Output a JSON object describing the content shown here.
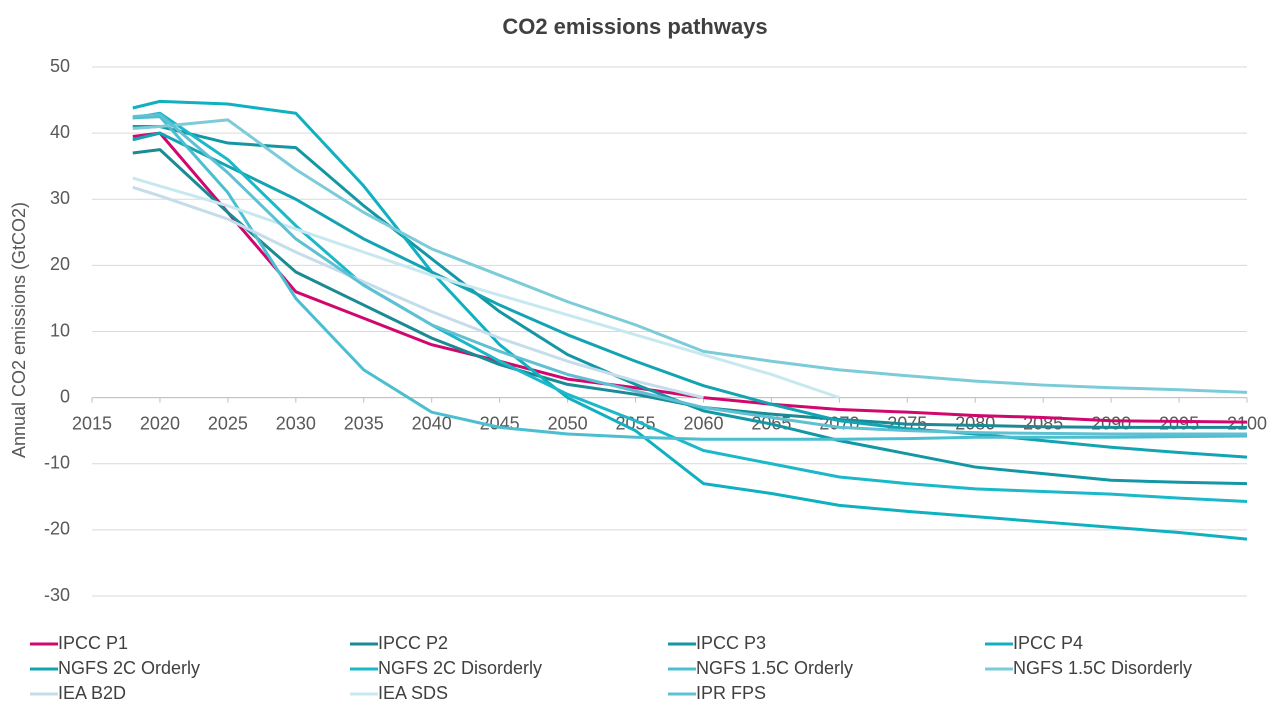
{
  "chart_data": {
    "type": "line",
    "title": "CO2 emissions pathways",
    "y_label": "Annual CO2 emissions (GtCO2)",
    "x": [
      2018,
      2020,
      2025,
      2030,
      2035,
      2040,
      2045,
      2050,
      2055,
      2060,
      2065,
      2070,
      2075,
      2080,
      2085,
      2090,
      2095,
      2100
    ],
    "xlim": [
      2015,
      2100
    ],
    "xticks": [
      2015,
      2020,
      2025,
      2030,
      2035,
      2040,
      2045,
      2050,
      2055,
      2060,
      2065,
      2070,
      2075,
      2080,
      2085,
      2090,
      2095,
      2100
    ],
    "ylim": [
      -30,
      50
    ],
    "yticks": [
      -30,
      -20,
      -10,
      0,
      10,
      20,
      30,
      40,
      50
    ],
    "grid": true,
    "legend": "bottom",
    "series": [
      {
        "name": "IPCC P1",
        "color": "#d0086e",
        "values": [
          39.5,
          40,
          28,
          16,
          12,
          8,
          5.5,
          2.8,
          1.5,
          0,
          -1,
          -1.8,
          -2.2,
          -2.7,
          -3,
          -3.5,
          -3.6,
          -3.7
        ]
      },
      {
        "name": "IPCC P2",
        "color": "#1a8a94",
        "values": [
          37,
          37.5,
          28,
          19,
          14,
          9,
          5,
          2,
          0.5,
          -1.5,
          -2.5,
          -3.3,
          -4,
          -4.2,
          -4.4,
          -4.5,
          -4.5,
          -4.5
        ]
      },
      {
        "name": "IPCC P3",
        "color": "#1497a5",
        "values": [
          41,
          41,
          38.5,
          37.8,
          29,
          21,
          13,
          6.5,
          2,
          -2,
          -4,
          -6.5,
          -8.5,
          -10.5,
          -11.5,
          -12.5,
          -12.8,
          -13
        ]
      },
      {
        "name": "IPCC P4",
        "color": "#0fb0c0",
        "values": [
          43.8,
          44.8,
          44.4,
          43,
          32,
          19,
          8,
          0,
          -5,
          -13,
          -14.5,
          -16.3,
          -17.2,
          -18,
          -18.8,
          -19.6,
          -20.4,
          -21.4
        ]
      },
      {
        "name": "NGFS 2C Orderly",
        "color": "#13a4b4",
        "values": [
          39,
          40,
          35,
          30,
          24,
          19,
          14,
          9.5,
          5.5,
          1.8,
          -1,
          -3.5,
          -4.7,
          -5.5,
          -6.5,
          -7.5,
          -8.3,
          -9
        ]
      },
      {
        "name": "NGFS 2C Disorderly",
        "color": "#1ab8c8",
        "values": [
          42.3,
          43,
          36,
          26,
          17,
          11,
          5.5,
          0.5,
          -3.5,
          -8,
          -10,
          -12,
          -13,
          -13.8,
          -14.2,
          -14.6,
          -15.2,
          -15.7
        ]
      },
      {
        "name": "NGFS 1.5C Orderly",
        "color": "#4bbfd0",
        "values": [
          42.3,
          42.5,
          31,
          15,
          4.2,
          -2.2,
          -4.5,
          -5.5,
          -6,
          -6.3,
          -6.3,
          -6.3,
          -6.2,
          -6,
          -6,
          -6,
          -5.9,
          -5.8
        ]
      },
      {
        "name": "NGFS 1.5C Disorderly",
        "color": "#7ccbd8",
        "values": [
          40.7,
          41,
          42,
          34.5,
          28,
          22.5,
          18.5,
          14.5,
          11,
          7,
          5.5,
          4.2,
          3.3,
          2.5,
          1.9,
          1.5,
          1.2,
          0.8
        ]
      },
      {
        "name": "IEA B2D",
        "color": "#c5dcea",
        "values": [
          31.8,
          30.5,
          27,
          22,
          17.5,
          13,
          9,
          5.5,
          2.5,
          0,
          null,
          null,
          null,
          null,
          null,
          null,
          null,
          null
        ]
      },
      {
        "name": "IEA SDS",
        "color": "#c8e8f0",
        "values": [
          33.2,
          32,
          29,
          25.5,
          22,
          18.5,
          15.5,
          12.5,
          9.5,
          6.5,
          3.5,
          0,
          null,
          null,
          null,
          null,
          null,
          null
        ]
      },
      {
        "name": "IPR FPS",
        "color": "#5fc0d4",
        "values": [
          42.5,
          42.8,
          34,
          24,
          17,
          11,
          7,
          3.5,
          1,
          -1.5,
          -3,
          -4.5,
          -5,
          -5.3,
          -5.4,
          -5.5,
          -5.5,
          -5.5
        ]
      }
    ]
  }
}
